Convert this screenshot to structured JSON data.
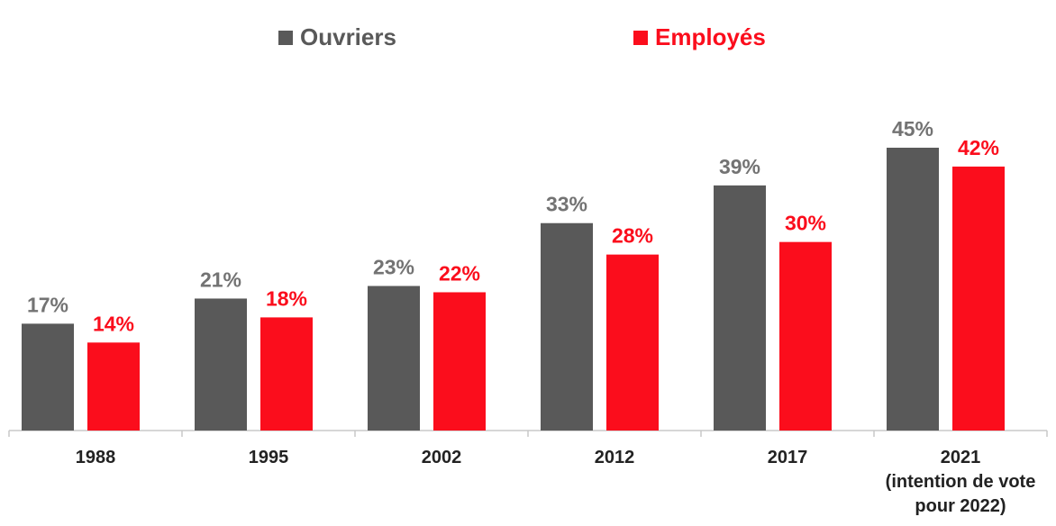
{
  "chart_data": {
    "type": "bar",
    "categories": [
      [
        "1988"
      ],
      [
        "1995"
      ],
      [
        "2002"
      ],
      [
        "2012"
      ],
      [
        "2017"
      ],
      [
        "2021",
        "(intention de vote",
        "pour 2022)"
      ]
    ],
    "series": [
      {
        "name": "Ouvriers",
        "color": "#595959",
        "values": [
          17,
          21,
          23,
          33,
          39,
          45
        ],
        "labels": [
          "17%",
          "21%",
          "23%",
          "33%",
          "39%",
          "45%"
        ],
        "label_color": "#737373"
      },
      {
        "name": "Employés",
        "color": "#fb0d1c",
        "values": [
          14,
          18,
          22,
          28,
          30,
          42
        ],
        "labels": [
          "14%",
          "18%",
          "22%",
          "28%",
          "30%",
          "42%"
        ],
        "label_color": "#fb0d1c"
      }
    ],
    "ylim": [
      0,
      45
    ],
    "grid": false,
    "legend": "top-center"
  }
}
